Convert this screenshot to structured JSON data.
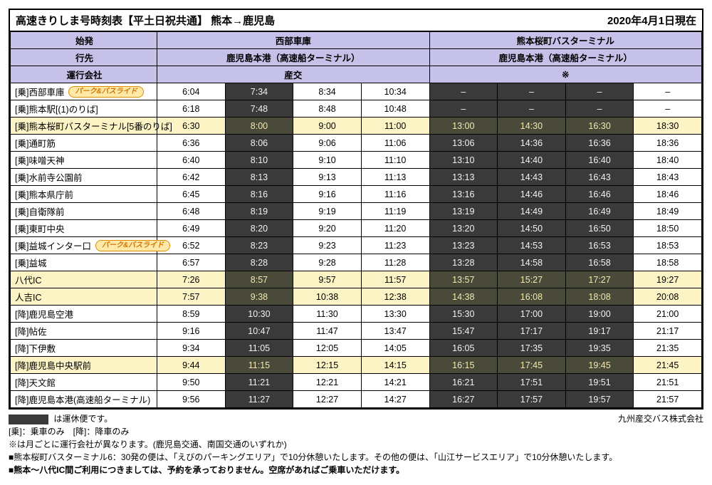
{
  "title_left": "高速きりしま号時刻表【平土日祝共通】 熊本→鹿児島",
  "title_right": "2020年4月1日現在",
  "header": {
    "origin_label": "始発",
    "dest_label": "行先",
    "operator_label": "運行会社",
    "depots": [
      "西部車庫",
      "熊本桜町バスターミナル"
    ],
    "destinations": [
      "鹿児島本港（高速船ターミナル）",
      "鹿児島本港（高速船ターミナル）"
    ],
    "operators": [
      "産交",
      "※"
    ]
  },
  "pr_badge": "パーク&バスライド",
  "columns_total": 8,
  "dark_cols": [
    1,
    4,
    5,
    6
  ],
  "stops": [
    {
      "name": "[乗]西部車庫",
      "badge": true,
      "hl": false,
      "times": [
        "6:04",
        "7:34",
        "8:34",
        "10:34",
        "–",
        "–",
        "–",
        "–"
      ]
    },
    {
      "name": "[乗]熊本駅[(1)のりば]",
      "badge": false,
      "hl": false,
      "times": [
        "6:18",
        "7:48",
        "8:48",
        "10:48",
        "–",
        "–",
        "–",
        "–"
      ]
    },
    {
      "name": "[乗]熊本桜町バスターミナル[5番のりば]",
      "badge": false,
      "hl": true,
      "times": [
        "6:30",
        "8:00",
        "9:00",
        "11:00",
        "13:00",
        "14:30",
        "16:30",
        "18:30"
      ]
    },
    {
      "name": "[乗]通町筋",
      "badge": false,
      "hl": false,
      "times": [
        "6:36",
        "8:06",
        "9:06",
        "11:06",
        "13:06",
        "14:36",
        "16:36",
        "18:36"
      ]
    },
    {
      "name": "[乗]味噌天神",
      "badge": false,
      "hl": false,
      "times": [
        "6:40",
        "8:10",
        "9:10",
        "11:10",
        "13:10",
        "14:40",
        "16:40",
        "18:40"
      ]
    },
    {
      "name": "[乗]水前寺公園前",
      "badge": false,
      "hl": false,
      "times": [
        "6:42",
        "8:13",
        "9:13",
        "11:13",
        "13:13",
        "14:43",
        "16:43",
        "18:43"
      ]
    },
    {
      "name": "[乗]熊本県庁前",
      "badge": false,
      "hl": false,
      "times": [
        "6:45",
        "8:16",
        "9:16",
        "11:16",
        "13:16",
        "14:46",
        "16:46",
        "18:46"
      ]
    },
    {
      "name": "[乗]自衛隊前",
      "badge": false,
      "hl": false,
      "times": [
        "6:48",
        "8:19",
        "9:19",
        "11:19",
        "13:19",
        "14:49",
        "16:49",
        "18:49"
      ]
    },
    {
      "name": "[乗]東町中央",
      "badge": false,
      "hl": false,
      "times": [
        "6:49",
        "8:20",
        "9:20",
        "11:20",
        "13:20",
        "14:50",
        "16:50",
        "18:50"
      ]
    },
    {
      "name": "[乗]益城インター口",
      "badge": true,
      "hl": false,
      "times": [
        "6:52",
        "8:23",
        "9:23",
        "11:23",
        "13:23",
        "14:53",
        "16:53",
        "18:53"
      ]
    },
    {
      "name": "[乗]益城",
      "badge": false,
      "hl": false,
      "times": [
        "6:57",
        "8:28",
        "9:28",
        "11:28",
        "13:28",
        "14:58",
        "16:58",
        "18:58"
      ]
    },
    {
      "name": "八代IC",
      "badge": false,
      "hl": true,
      "times": [
        "7:26",
        "8:57",
        "9:57",
        "11:57",
        "13:57",
        "15:27",
        "17:27",
        "19:27"
      ]
    },
    {
      "name": "人吉IC",
      "badge": false,
      "hl": true,
      "times": [
        "7:57",
        "9:38",
        "10:38",
        "12:38",
        "14:38",
        "16:08",
        "18:08",
        "20:08"
      ]
    },
    {
      "name": "[降]鹿児島空港",
      "badge": false,
      "hl": false,
      "times": [
        "8:59",
        "10:30",
        "11:30",
        "13:30",
        "15:30",
        "17:00",
        "19:00",
        "21:00"
      ]
    },
    {
      "name": "[降]帖佐",
      "badge": false,
      "hl": false,
      "times": [
        "9:16",
        "10:47",
        "11:47",
        "13:47",
        "15:47",
        "17:17",
        "19:17",
        "21:17"
      ]
    },
    {
      "name": "[降]下伊敷",
      "badge": false,
      "hl": false,
      "times": [
        "9:34",
        "11:05",
        "12:05",
        "14:05",
        "16:05",
        "17:35",
        "19:35",
        "21:35"
      ]
    },
    {
      "name": "[降]鹿児島中央駅前",
      "badge": false,
      "hl": true,
      "times": [
        "9:44",
        "11:15",
        "12:15",
        "14:15",
        "16:15",
        "17:45",
        "19:45",
        "21:45"
      ]
    },
    {
      "name": "[降]天文館",
      "badge": false,
      "hl": false,
      "times": [
        "9:50",
        "11:21",
        "12:21",
        "14:21",
        "16:21",
        "17:51",
        "19:51",
        "21:51"
      ]
    },
    {
      "name": "[降]鹿児島本港(高速船ターミナル)",
      "badge": false,
      "hl": false,
      "times": [
        "9:56",
        "11:27",
        "12:27",
        "14:27",
        "16:27",
        "17:57",
        "19:57",
        "21:57"
      ]
    }
  ],
  "notes": {
    "legend_text": "は運休便です。",
    "company": "九州産交バス株式会社",
    "line2": "[乗]：乗車のみ　[降]：降車のみ",
    "line3": "※は月ごとに運行会社が異なります。(鹿児島交通、南国交通のいずれか)",
    "line4": "■熊本桜町バスターミナル6：30発の便は、「えびのパーキングエリア」で10分休憩いたします。その他の便は、「山江サービスエリア」で10分休憩いたします。",
    "line5": "■熊本～八代IC間ご利用につきましては、予約を承っておりません。空席があればご乗車いただけます。"
  }
}
